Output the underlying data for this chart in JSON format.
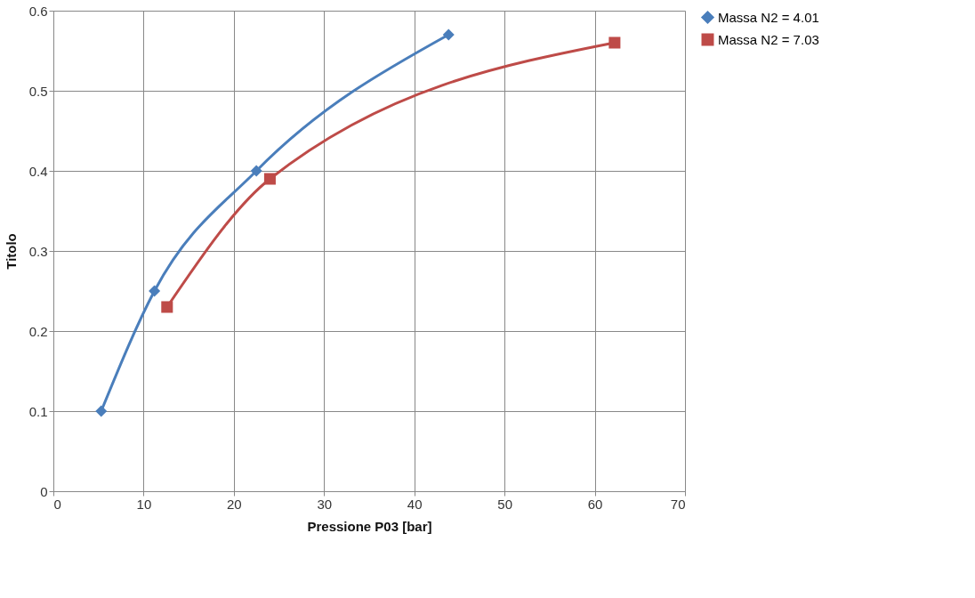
{
  "chart_data": {
    "type": "line",
    "xlabel": "Pressione P03 [bar]",
    "ylabel": "Titolo",
    "xlim": [
      0,
      70
    ],
    "xticks": [
      0,
      10,
      20,
      30,
      40,
      50,
      60,
      70
    ],
    "ylim": [
      0,
      0.6
    ],
    "yticks": [
      0,
      0.1,
      0.2,
      0.3,
      0.4,
      0.5,
      0.6
    ],
    "grid": true,
    "legend": "right",
    "line_style": "solid",
    "series": [
      {
        "name": "Massa N2 = 4.01",
        "color": "#4a7ebb",
        "marker": "diamond",
        "x": [
          5.3,
          11.2,
          22.5,
          43.8
        ],
        "values": [
          0.1,
          0.25,
          0.4,
          0.57
        ]
      },
      {
        "name": "Massa N2 = 7.03",
        "color": "#be4b48",
        "marker": "square",
        "x": [
          12.6,
          24.0,
          62.2
        ],
        "values": [
          0.23,
          0.39,
          0.56
        ]
      }
    ]
  }
}
